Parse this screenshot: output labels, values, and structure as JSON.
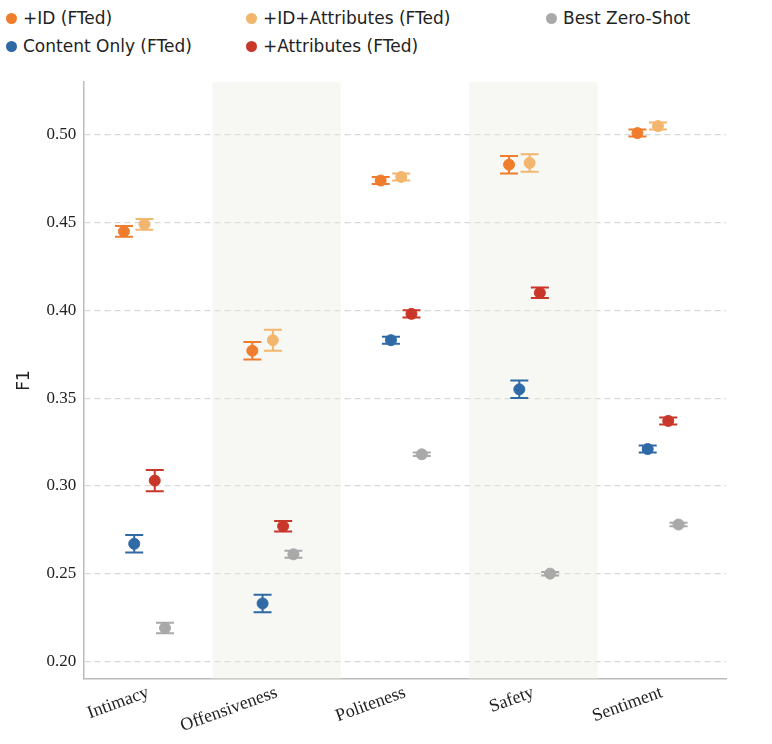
{
  "chart_data": {
    "type": "scatter",
    "categories": [
      "Intimacy",
      "Offensiveness",
      "Politeness",
      "Safety",
      "Sentiment"
    ],
    "y_label": "F1",
    "ylim": [
      0.19,
      0.53
    ],
    "yticks": [
      {
        "value": 0.2,
        "label": "0.20"
      },
      {
        "value": 0.25,
        "label": "0.25"
      },
      {
        "value": 0.3,
        "label": "0.30"
      },
      {
        "value": 0.35,
        "label": "0.35"
      },
      {
        "value": 0.4,
        "label": "0.40"
      },
      {
        "value": 0.45,
        "label": "0.45"
      },
      {
        "value": 0.5,
        "label": "0.50"
      }
    ],
    "grid": true,
    "legend": "top",
    "marker": "circle",
    "series": [
      {
        "name": "+ID (FTed)",
        "color": "#ef7d2d",
        "values": [
          0.445,
          0.377,
          0.474,
          0.483,
          0.501
        ],
        "errors": [
          0.003,
          0.005,
          0.002,
          0.005,
          0.002
        ]
      },
      {
        "name": "Content Only (FTed)",
        "color": "#2f6aa6",
        "values": [
          0.267,
          0.233,
          0.383,
          0.355,
          0.321
        ],
        "errors": [
          0.005,
          0.005,
          0.002,
          0.005,
          0.002
        ]
      },
      {
        "name": "+ID+Attributes (FTed)",
        "color": "#f3b66f",
        "values": [
          0.449,
          0.383,
          0.476,
          0.484,
          0.505
        ],
        "errors": [
          0.003,
          0.006,
          0.002,
          0.005,
          0.002
        ]
      },
      {
        "name": "+Attributes (FTed)",
        "color": "#c9372a",
        "values": [
          0.303,
          0.277,
          0.398,
          0.41,
          0.337
        ],
        "errors": [
          0.006,
          0.003,
          0.002,
          0.003,
          0.002
        ]
      },
      {
        "name": "Best Zero-Shot",
        "color": "#a9a9a9",
        "values": [
          0.219,
          0.261,
          0.318,
          0.25,
          0.278
        ],
        "errors": [
          0.003,
          0.002,
          0.001,
          0.001,
          0.001
        ]
      }
    ]
  }
}
